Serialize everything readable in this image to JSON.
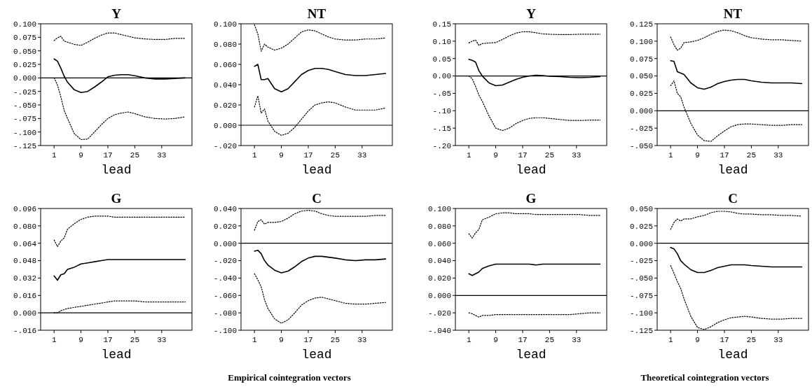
{
  "chart_data": [
    {
      "type": "line",
      "title": "Y",
      "xlabel": "lead",
      "x": [
        1,
        2,
        3,
        4,
        5,
        7,
        9,
        11,
        13,
        15,
        17,
        19,
        21,
        23,
        25,
        28,
        31,
        34,
        37,
        40
      ],
      "xlim": [
        -3,
        42
      ],
      "xticks": [
        1,
        9,
        17,
        25,
        33
      ],
      "ylim": [
        -0.125,
        0.1
      ],
      "yticks": [
        {
          "value": -0.125,
          "label": "-.125"
        },
        {
          "value": -0.1,
          "label": "-.100"
        },
        {
          "value": -0.075,
          "label": "-.075"
        },
        {
          "value": -0.05,
          "label": "-.050"
        },
        {
          "value": -0.025,
          "label": "-.025"
        },
        {
          "value": 0,
          "label": "0.000"
        },
        {
          "value": 0.025,
          "label": "0.025"
        },
        {
          "value": 0.05,
          "label": "0.050"
        },
        {
          "value": 0.075,
          "label": "0.075"
        },
        {
          "value": 0.1,
          "label": "0.100"
        }
      ],
      "ref_lines": [
        {
          "axis": "y",
          "value": 0
        }
      ],
      "series": [
        {
          "color": "#000000",
          "line_style": "solid",
          "values": [
            0.035,
            0.031,
            0.018,
            0.003,
            -0.008,
            -0.022,
            -0.027,
            -0.025,
            -0.017,
            -0.008,
            0.002,
            0.005,
            0.006,
            0.006,
            0.004,
            0.0,
            -0.002,
            -0.002,
            -0.001,
            0.0
          ]
        },
        {
          "color": "#000000",
          "line_style": "dotted",
          "values": [
            0.069,
            0.074,
            0.077,
            0.068,
            0.066,
            0.062,
            0.06,
            0.066,
            0.073,
            0.079,
            0.083,
            0.083,
            0.08,
            0.077,
            0.074,
            0.072,
            0.071,
            0.071,
            0.073,
            0.073
          ]
        },
        {
          "color": "#000000",
          "line_style": "dotted",
          "values": [
            0.0,
            -0.013,
            -0.035,
            -0.06,
            -0.075,
            -0.103,
            -0.114,
            -0.113,
            -0.1,
            -0.087,
            -0.075,
            -0.068,
            -0.065,
            -0.063,
            -0.066,
            -0.072,
            -0.075,
            -0.076,
            -0.075,
            -0.072
          ]
        }
      ]
    },
    {
      "type": "line",
      "title": "NT",
      "xlabel": "lead",
      "x": [
        1,
        2,
        3,
        4,
        5,
        7,
        9,
        11,
        13,
        15,
        17,
        19,
        21,
        23,
        25,
        28,
        31,
        34,
        37,
        40
      ],
      "xlim": [
        -3,
        42
      ],
      "xticks": [
        1,
        9,
        17,
        25,
        33
      ],
      "ylim": [
        -0.02,
        0.1
      ],
      "yticks": [
        {
          "value": -0.02,
          "label": "-.020"
        },
        {
          "value": 0,
          "label": "0.000"
        },
        {
          "value": 0.02,
          "label": "0.020"
        },
        {
          "value": 0.04,
          "label": "0.040"
        },
        {
          "value": 0.06,
          "label": "0.060"
        },
        {
          "value": 0.08,
          "label": "0.080"
        },
        {
          "value": 0.1,
          "label": "0.100"
        }
      ],
      "ref_lines": [
        {
          "axis": "y",
          "value": 0
        }
      ],
      "series": [
        {
          "color": "#000000",
          "line_style": "solid",
          "values": [
            0.058,
            0.06,
            0.045,
            0.045,
            0.046,
            0.036,
            0.033,
            0.036,
            0.043,
            0.05,
            0.054,
            0.056,
            0.056,
            0.055,
            0.053,
            0.05,
            0.049,
            0.049,
            0.05,
            0.051
          ]
        },
        {
          "color": "#000000",
          "line_style": "dotted",
          "values": [
            0.099,
            0.09,
            0.073,
            0.08,
            0.077,
            0.074,
            0.076,
            0.08,
            0.086,
            0.092,
            0.094,
            0.093,
            0.09,
            0.087,
            0.085,
            0.084,
            0.084,
            0.085,
            0.085,
            0.086
          ]
        },
        {
          "color": "#000000",
          "line_style": "dotted",
          "values": [
            0.018,
            0.029,
            0.012,
            0.016,
            0.004,
            -0.006,
            -0.01,
            -0.008,
            -0.002,
            0.006,
            0.014,
            0.02,
            0.022,
            0.023,
            0.022,
            0.018,
            0.015,
            0.015,
            0.015,
            0.017
          ]
        }
      ]
    },
    {
      "type": "line",
      "title": "Y",
      "xlabel": "lead",
      "x": [
        1,
        2,
        3,
        4,
        5,
        7,
        9,
        11,
        13,
        15,
        17,
        19,
        21,
        23,
        25,
        28,
        31,
        34,
        37,
        40
      ],
      "xlim": [
        -3,
        42
      ],
      "xticks": [
        1,
        9,
        17,
        25,
        33
      ],
      "ylim": [
        -0.2,
        0.15
      ],
      "yticks": [
        {
          "value": -0.2,
          "label": "-.20"
        },
        {
          "value": -0.15,
          "label": "-.15"
        },
        {
          "value": -0.1,
          "label": "-.10"
        },
        {
          "value": -0.05,
          "label": "-.05"
        },
        {
          "value": 0,
          "label": "0.00"
        },
        {
          "value": 0.05,
          "label": "0.05"
        },
        {
          "value": 0.1,
          "label": "0.10"
        },
        {
          "value": 0.15,
          "label": "0.15"
        }
      ],
      "ref_lines": [
        {
          "axis": "y",
          "value": 0
        }
      ],
      "series": [
        {
          "color": "#000000",
          "line_style": "solid",
          "values": [
            0.048,
            0.045,
            0.04,
            0.015,
            0.0,
            -0.02,
            -0.028,
            -0.026,
            -0.018,
            -0.01,
            -0.004,
            0.0,
            0.002,
            0.001,
            -0.001,
            -0.002,
            -0.004,
            -0.005,
            -0.004,
            -0.002
          ]
        },
        {
          "color": "#000000",
          "line_style": "dotted",
          "values": [
            0.095,
            0.1,
            0.103,
            0.088,
            0.093,
            0.095,
            0.096,
            0.105,
            0.115,
            0.123,
            0.127,
            0.127,
            0.124,
            0.121,
            0.12,
            0.119,
            0.119,
            0.12,
            0.12,
            0.12
          ]
        },
        {
          "color": "#000000",
          "line_style": "dotted",
          "values": [
            0.0,
            -0.008,
            -0.03,
            -0.055,
            -0.073,
            -0.115,
            -0.15,
            -0.157,
            -0.15,
            -0.137,
            -0.128,
            -0.122,
            -0.12,
            -0.12,
            -0.122,
            -0.125,
            -0.128,
            -0.128,
            -0.127,
            -0.127
          ]
        }
      ]
    },
    {
      "type": "line",
      "title": "NT",
      "xlabel": "lead",
      "x": [
        1,
        2,
        3,
        4,
        5,
        7,
        9,
        11,
        13,
        15,
        17,
        19,
        21,
        23,
        25,
        28,
        31,
        34,
        37,
        40
      ],
      "xlim": [
        -3,
        42
      ],
      "xticks": [
        1,
        9,
        17,
        25,
        33
      ],
      "ylim": [
        -0.05,
        0.125
      ],
      "yticks": [
        {
          "value": -0.05,
          "label": "-.050"
        },
        {
          "value": -0.025,
          "label": "-.025"
        },
        {
          "value": 0,
          "label": "0.000"
        },
        {
          "value": 0.025,
          "label": "0.025"
        },
        {
          "value": 0.05,
          "label": "0.050"
        },
        {
          "value": 0.075,
          "label": "0.075"
        },
        {
          "value": 0.1,
          "label": "0.100"
        },
        {
          "value": 0.125,
          "label": "0.125"
        }
      ],
      "ref_lines": [
        {
          "axis": "y",
          "value": 0
        }
      ],
      "series": [
        {
          "color": "#000000",
          "line_style": "solid",
          "values": [
            0.072,
            0.071,
            0.056,
            0.054,
            0.052,
            0.04,
            0.033,
            0.031,
            0.034,
            0.039,
            0.042,
            0.044,
            0.045,
            0.045,
            0.043,
            0.041,
            0.04,
            0.04,
            0.04,
            0.039
          ]
        },
        {
          "color": "#000000",
          "line_style": "dotted",
          "values": [
            0.106,
            0.095,
            0.087,
            0.09,
            0.098,
            0.099,
            0.101,
            0.105,
            0.11,
            0.114,
            0.116,
            0.115,
            0.112,
            0.108,
            0.105,
            0.103,
            0.102,
            0.102,
            0.101,
            0.1
          ]
        },
        {
          "color": "#000000",
          "line_style": "dotted",
          "values": [
            0.036,
            0.043,
            0.025,
            0.02,
            0.005,
            -0.018,
            -0.035,
            -0.043,
            -0.044,
            -0.036,
            -0.029,
            -0.023,
            -0.02,
            -0.019,
            -0.019,
            -0.02,
            -0.021,
            -0.021,
            -0.02,
            -0.02
          ]
        }
      ]
    },
    {
      "type": "line",
      "title": "G",
      "xlabel": "lead",
      "annotations": [
        "Empirical cointegration vectors"
      ],
      "x": [
        1,
        2,
        3,
        4,
        5,
        7,
        9,
        11,
        13,
        15,
        17,
        19,
        21,
        23,
        25,
        28,
        31,
        34,
        37,
        40
      ],
      "xlim": [
        -3,
        42
      ],
      "xticks": [
        1,
        9,
        17,
        25,
        33
      ],
      "ylim": [
        -0.016,
        0.096
      ],
      "yticks": [
        {
          "value": -0.016,
          "label": "-.016"
        },
        {
          "value": 0,
          "label": "0.000"
        },
        {
          "value": 0.016,
          "label": "0.016"
        },
        {
          "value": 0.032,
          "label": "0.032"
        },
        {
          "value": 0.048,
          "label": "0.048"
        },
        {
          "value": 0.064,
          "label": "0.064"
        },
        {
          "value": 0.08,
          "label": "0.080"
        },
        {
          "value": 0.096,
          "label": "0.096"
        }
      ],
      "ref_lines": [
        {
          "axis": "y",
          "value": 0
        }
      ],
      "series": [
        {
          "color": "#000000",
          "line_style": "solid",
          "values": [
            0.034,
            0.03,
            0.035,
            0.036,
            0.04,
            0.042,
            0.045,
            0.046,
            0.047,
            0.048,
            0.049,
            0.049,
            0.049,
            0.049,
            0.049,
            0.049,
            0.049,
            0.049,
            0.049,
            0.049
          ]
        },
        {
          "color": "#000000",
          "line_style": "dotted",
          "values": [
            0.067,
            0.061,
            0.066,
            0.069,
            0.077,
            0.082,
            0.086,
            0.088,
            0.089,
            0.089,
            0.089,
            0.088,
            0.088,
            0.088,
            0.088,
            0.088,
            0.088,
            0.088,
            0.088,
            0.088
          ]
        },
        {
          "color": "#000000",
          "line_style": "dotted",
          "values": [
            0.0,
            0.0,
            0.002,
            0.003,
            0.004,
            0.005,
            0.006,
            0.007,
            0.008,
            0.009,
            0.01,
            0.011,
            0.011,
            0.011,
            0.011,
            0.01,
            0.01,
            0.01,
            0.01,
            0.01
          ]
        }
      ]
    },
    {
      "type": "line",
      "title": "C",
      "xlabel": "lead",
      "x": [
        1,
        2,
        3,
        4,
        5,
        7,
        9,
        11,
        13,
        15,
        17,
        19,
        21,
        23,
        25,
        28,
        31,
        34,
        37,
        40
      ],
      "xlim": [
        -3,
        42
      ],
      "xticks": [
        1,
        9,
        17,
        25,
        33
      ],
      "ylim": [
        -0.1,
        0.04
      ],
      "yticks": [
        {
          "value": -0.1,
          "label": "-.100"
        },
        {
          "value": -0.08,
          "label": "-.080"
        },
        {
          "value": -0.06,
          "label": "-.060"
        },
        {
          "value": -0.04,
          "label": "-.040"
        },
        {
          "value": -0.02,
          "label": "-.020"
        },
        {
          "value": 0,
          "label": "0.000"
        },
        {
          "value": 0.02,
          "label": "0.020"
        },
        {
          "value": 0.04,
          "label": "0.040"
        }
      ],
      "ref_lines": [
        {
          "axis": "y",
          "value": 0
        }
      ],
      "series": [
        {
          "color": "#000000",
          "line_style": "solid",
          "values": [
            -0.009,
            -0.008,
            -0.012,
            -0.02,
            -0.025,
            -0.031,
            -0.034,
            -0.032,
            -0.027,
            -0.021,
            -0.017,
            -0.015,
            -0.015,
            -0.016,
            -0.017,
            -0.019,
            -0.02,
            -0.019,
            -0.019,
            -0.018
          ]
        },
        {
          "color": "#000000",
          "line_style": "dotted",
          "values": [
            0.015,
            0.025,
            0.027,
            0.022,
            0.024,
            0.024,
            0.025,
            0.029,
            0.034,
            0.037,
            0.038,
            0.037,
            0.034,
            0.032,
            0.031,
            0.031,
            0.031,
            0.031,
            0.032,
            0.032
          ]
        },
        {
          "color": "#000000",
          "line_style": "dotted",
          "values": [
            -0.035,
            -0.042,
            -0.05,
            -0.065,
            -0.075,
            -0.087,
            -0.092,
            -0.088,
            -0.08,
            -0.071,
            -0.066,
            -0.063,
            -0.062,
            -0.064,
            -0.066,
            -0.069,
            -0.07,
            -0.07,
            -0.069,
            -0.068
          ]
        }
      ]
    },
    {
      "type": "line",
      "title": "G",
      "xlabel": "lead",
      "annotations": [
        "Theoretical cointegration vectors"
      ],
      "x": [
        1,
        2,
        3,
        4,
        5,
        7,
        9,
        11,
        13,
        15,
        17,
        19,
        21,
        23,
        25,
        28,
        31,
        34,
        37,
        40
      ],
      "xlim": [
        -3,
        42
      ],
      "xticks": [
        1,
        9,
        17,
        25,
        33
      ],
      "ylim": [
        -0.04,
        0.1
      ],
      "yticks": [
        {
          "value": -0.04,
          "label": "-.040"
        },
        {
          "value": -0.02,
          "label": "-.020"
        },
        {
          "value": 0,
          "label": "0.000"
        },
        {
          "value": 0.02,
          "label": "0.020"
        },
        {
          "value": 0.04,
          "label": "0.040"
        },
        {
          "value": 0.06,
          "label": "0.060"
        },
        {
          "value": 0.08,
          "label": "0.080"
        },
        {
          "value": 0.1,
          "label": "0.100"
        }
      ],
      "ref_lines": [
        {
          "axis": "y",
          "value": 0
        }
      ],
      "series": [
        {
          "color": "#000000",
          "line_style": "solid",
          "values": [
            0.025,
            0.023,
            0.025,
            0.027,
            0.031,
            0.034,
            0.036,
            0.036,
            0.036,
            0.036,
            0.036,
            0.036,
            0.035,
            0.036,
            0.036,
            0.036,
            0.036,
            0.036,
            0.036,
            0.036
          ]
        },
        {
          "color": "#000000",
          "line_style": "dotted",
          "values": [
            0.071,
            0.066,
            0.072,
            0.076,
            0.087,
            0.09,
            0.094,
            0.095,
            0.095,
            0.094,
            0.094,
            0.094,
            0.093,
            0.093,
            0.093,
            0.093,
            0.093,
            0.093,
            0.092,
            0.092
          ]
        },
        {
          "color": "#000000",
          "line_style": "dotted",
          "values": [
            -0.02,
            -0.021,
            -0.023,
            -0.025,
            -0.023,
            -0.023,
            -0.022,
            -0.022,
            -0.022,
            -0.022,
            -0.022,
            -0.022,
            -0.022,
            -0.022,
            -0.022,
            -0.022,
            -0.022,
            -0.021,
            -0.02,
            -0.02
          ]
        }
      ]
    },
    {
      "type": "line",
      "title": "C",
      "xlabel": "lead",
      "x": [
        1,
        2,
        3,
        4,
        5,
        7,
        9,
        11,
        13,
        15,
        17,
        19,
        21,
        23,
        25,
        28,
        31,
        34,
        37,
        40
      ],
      "xlim": [
        -3,
        42
      ],
      "xticks": [
        1,
        9,
        17,
        25,
        33
      ],
      "ylim": [
        -0.125,
        0.05
      ],
      "yticks": [
        {
          "value": -0.125,
          "label": "-.125"
        },
        {
          "value": -0.1,
          "label": "-.100"
        },
        {
          "value": -0.075,
          "label": "-.075"
        },
        {
          "value": -0.05,
          "label": "-.050"
        },
        {
          "value": -0.025,
          "label": "-.025"
        },
        {
          "value": 0,
          "label": "0.000"
        },
        {
          "value": 0.025,
          "label": "0.025"
        },
        {
          "value": 0.05,
          "label": "0.050"
        }
      ],
      "ref_lines": [
        {
          "axis": "y",
          "value": 0
        }
      ],
      "series": [
        {
          "color": "#000000",
          "line_style": "solid",
          "values": [
            -0.006,
            -0.008,
            -0.015,
            -0.025,
            -0.03,
            -0.038,
            -0.042,
            -0.042,
            -0.039,
            -0.035,
            -0.033,
            -0.031,
            -0.031,
            -0.031,
            -0.032,
            -0.033,
            -0.034,
            -0.034,
            -0.034,
            -0.034
          ]
        },
        {
          "color": "#000000",
          "line_style": "dotted",
          "values": [
            0.02,
            0.03,
            0.035,
            0.032,
            0.035,
            0.035,
            0.038,
            0.04,
            0.044,
            0.046,
            0.046,
            0.045,
            0.043,
            0.042,
            0.042,
            0.041,
            0.041,
            0.04,
            0.04,
            0.039
          ]
        },
        {
          "color": "#000000",
          "line_style": "dotted",
          "values": [
            -0.032,
            -0.043,
            -0.055,
            -0.065,
            -0.08,
            -0.105,
            -0.121,
            -0.124,
            -0.12,
            -0.114,
            -0.11,
            -0.107,
            -0.106,
            -0.105,
            -0.106,
            -0.108,
            -0.109,
            -0.109,
            -0.108,
            -0.108
          ]
        }
      ]
    }
  ]
}
